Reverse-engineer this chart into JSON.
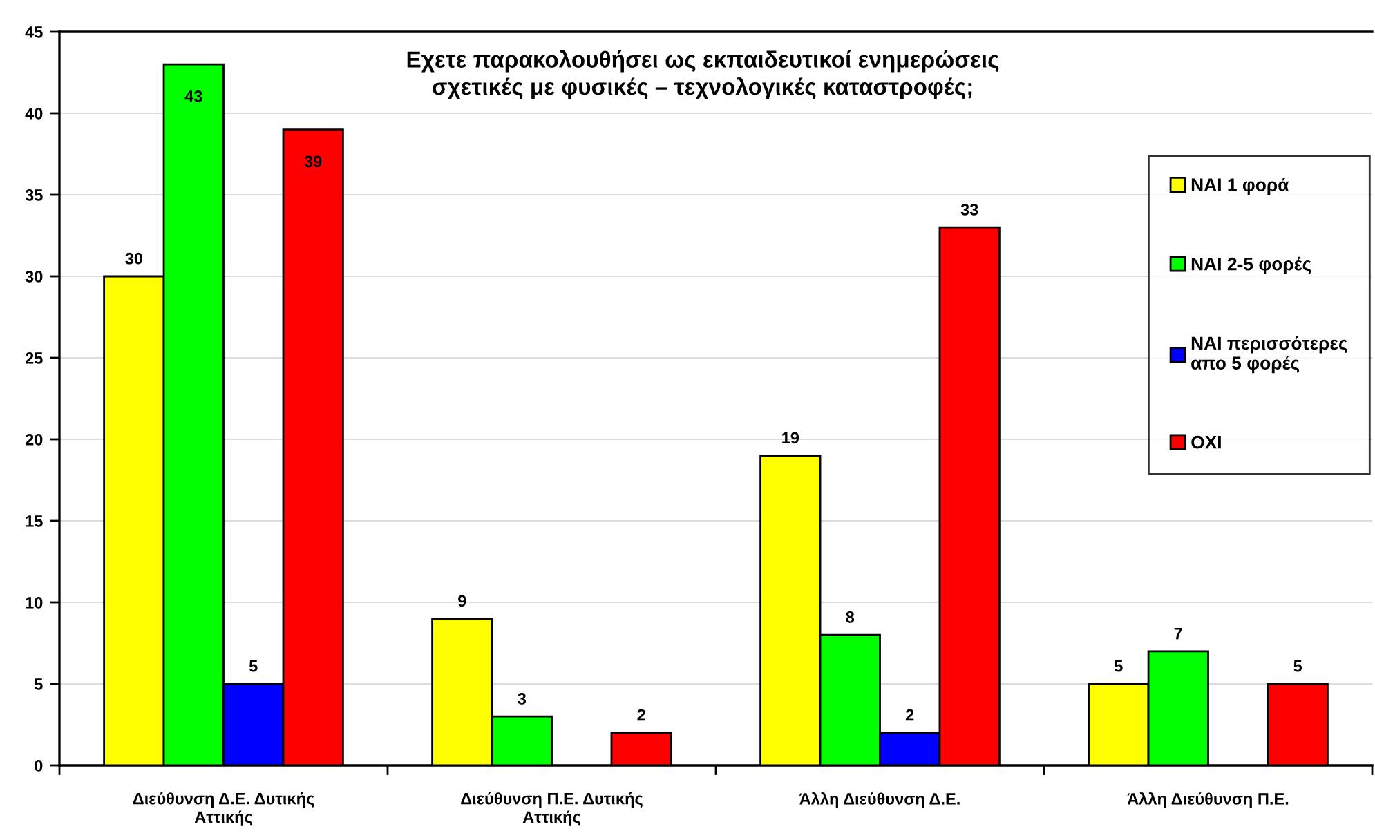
{
  "chart_data": {
    "type": "bar",
    "title": "Εχετε παρακολουθήσει ως εκπαιδευτικοί ενημερώσεις\nσχετικές με φυσικές – τεχνολογικές καταστροφές;",
    "categories": [
      "Διεύθυνση Δ.Ε. Δυτικής\nΑττικής",
      "Διεύθυνση Π.Ε. Δυτικής\nΑττικής",
      "Άλλη Διεύθυνση Δ.Ε.",
      "Άλλη Διεύθυνση Π.Ε."
    ],
    "series": [
      {
        "name": "ΝΑΙ 1 φορά",
        "color": "#ffff00",
        "values": [
          30,
          9,
          19,
          5
        ]
      },
      {
        "name": "ΝΑΙ 2-5 φορές",
        "color": "#00ff00",
        "values": [
          43,
          3,
          8,
          7
        ]
      },
      {
        "name": "ΝΑΙ περισσότερες\nαπο 5 φορές",
        "color": "#0000ff",
        "values": [
          5,
          null,
          2,
          null
        ]
      },
      {
        "name": "ΟΧΙ",
        "color": "#ff0000",
        "values": [
          39,
          2,
          33,
          5
        ]
      }
    ],
    "ylim": [
      0,
      45
    ],
    "yticks": [
      0,
      5,
      10,
      15,
      20,
      25,
      30,
      35,
      40,
      45
    ],
    "grid": "y",
    "legend": "right",
    "data_labels": true
  }
}
